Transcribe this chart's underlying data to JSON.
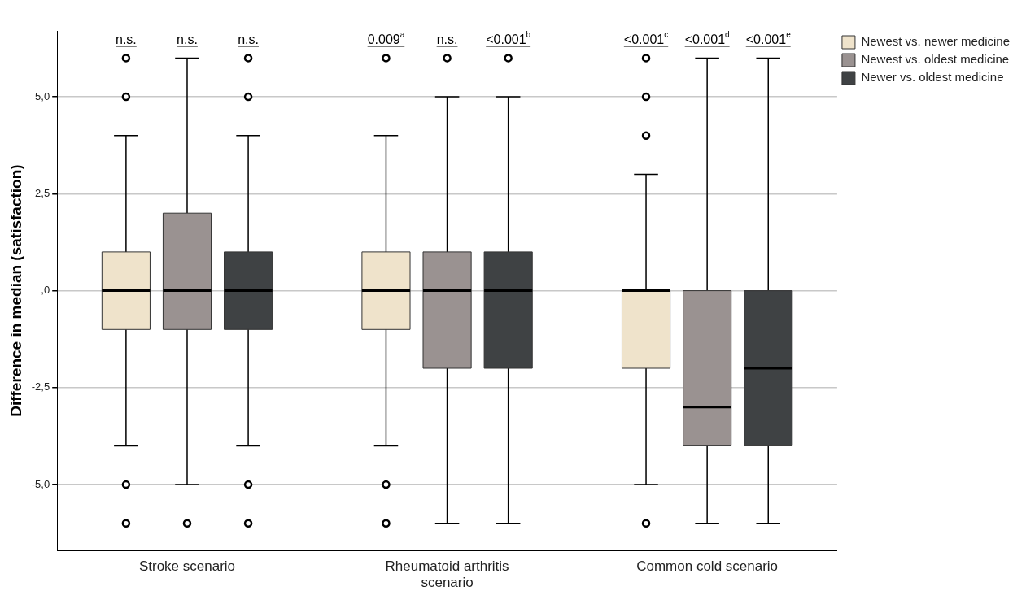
{
  "chart_data": {
    "type": "box",
    "ylabel": "Difference in median (satisfaction)",
    "categories": [
      "Stroke scenario",
      "Rheumatoid arthritis scenario",
      "Common cold scenario"
    ],
    "series": [
      {
        "name": "Newest vs. newer medicine",
        "color": "#efe3cb",
        "boxes": [
          {
            "low": -4,
            "q1": -1,
            "median": 0,
            "q3": 1,
            "high": 4,
            "outliers": [
              5,
              6,
              -5,
              -6
            ]
          },
          {
            "low": -4,
            "q1": -1,
            "median": 0,
            "q3": 1,
            "high": 4,
            "outliers": [
              6,
              -5,
              -6
            ]
          },
          {
            "low": -5,
            "q1": -2,
            "median": 0,
            "q3": 0,
            "high": 3,
            "outliers": [
              4,
              5,
              6,
              -6
            ]
          }
        ]
      },
      {
        "name": "Newest vs. oldest medicine",
        "color": "#9a9291",
        "boxes": [
          {
            "low": -5,
            "q1": -1,
            "median": 0,
            "q3": 2,
            "high": 6,
            "outliers": [
              -6
            ]
          },
          {
            "low": -6,
            "q1": -2,
            "median": 0,
            "q3": 1,
            "high": 5,
            "outliers": [
              6
            ]
          },
          {
            "low": -6,
            "q1": -4,
            "median": -3,
            "q3": 0,
            "high": 6
          }
        ]
      },
      {
        "name": "Newer vs. oldest medicine",
        "color": "#3f4244",
        "boxes": [
          {
            "low": -4,
            "q1": -1,
            "median": 0,
            "q3": 1,
            "high": 4,
            "outliers": [
              5,
              6,
              -5,
              -6
            ]
          },
          {
            "low": -6,
            "q1": -2,
            "median": 0,
            "q3": 1,
            "high": 5,
            "outliers": [
              6
            ]
          },
          {
            "low": -6,
            "q1": -4,
            "median": -2,
            "q3": 0,
            "high": 6
          }
        ]
      }
    ],
    "ylim": [
      -6.7,
      6.7
    ],
    "yticks": [
      {
        "value": -5,
        "label": "-5,0"
      },
      {
        "value": -2.5,
        "label": "-2,5"
      },
      {
        "value": 0,
        "label": ",0"
      },
      {
        "value": 2.5,
        "label": "2,5"
      },
      {
        "value": 5,
        "label": "5,0"
      }
    ],
    "grid": "y",
    "legend": "top right",
    "annotations": [
      "n.s.",
      "n.s.",
      "n.s.",
      "0.009$^{a}$",
      "n.s.",
      "<0.001$^{b}$",
      "<0.001$^{c}$",
      "<0.001$^{d}$",
      "<0.001$^{e}$"
    ]
  }
}
